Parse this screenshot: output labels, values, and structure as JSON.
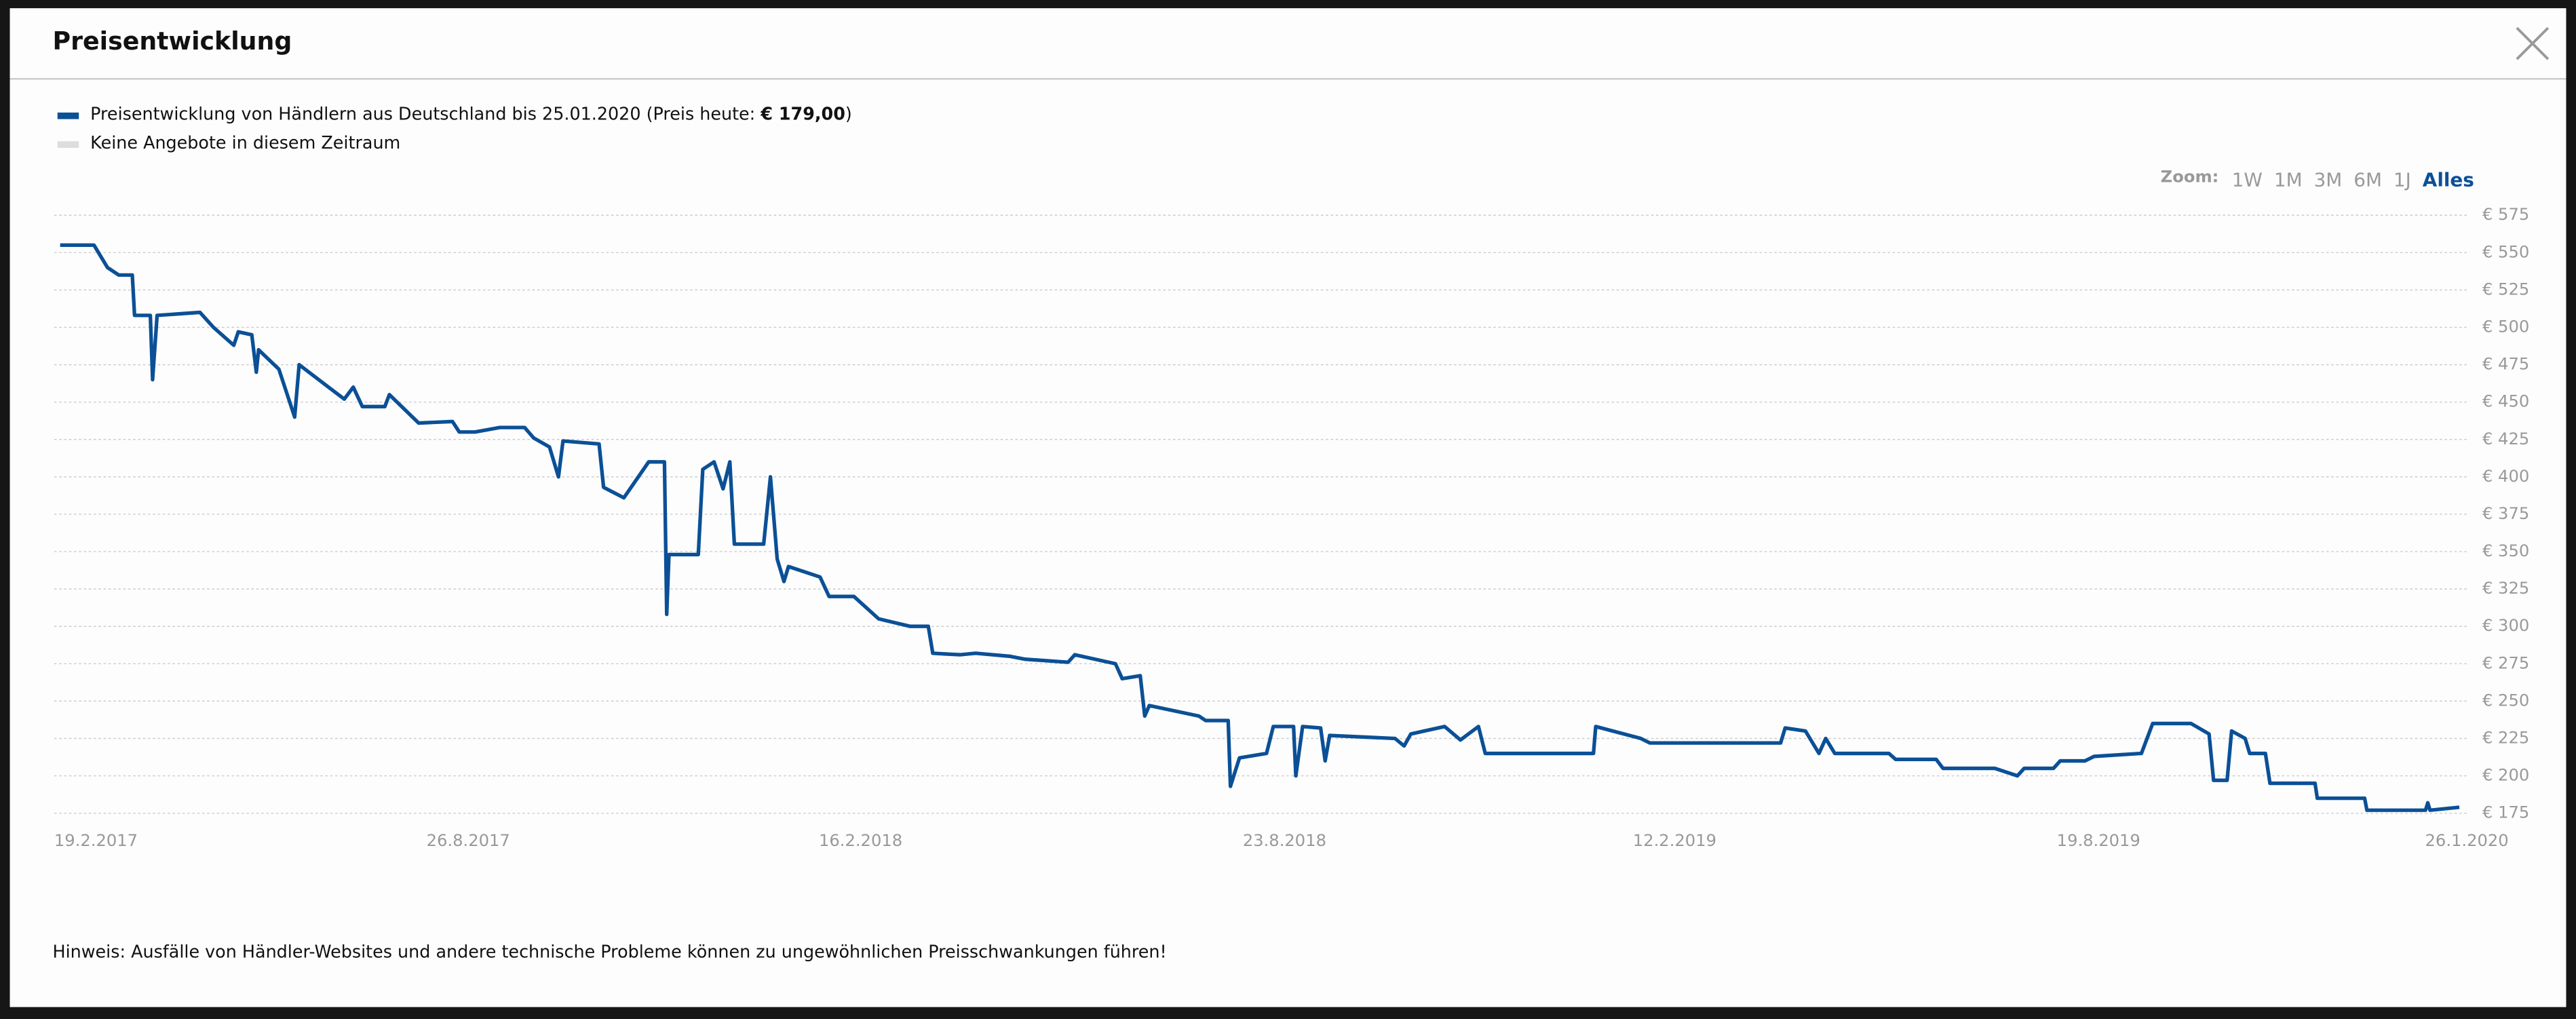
{
  "header": {
    "title": "Preisentwicklung"
  },
  "legend": {
    "items": [
      {
        "text": "Preisentwicklung von Händlern aus Deutschland bis 25.01.2020 (Preis heute: ",
        "bold": "€ 179,00",
        "text_end": ")",
        "color": "#0b5096"
      },
      {
        "text": "Keine Angebote in diesem Zeitraum",
        "color": "#dddddd"
      }
    ]
  },
  "zoom": {
    "label": "Zoom:",
    "options": [
      "1W",
      "1M",
      "3M",
      "6M",
      "1J",
      "Alles"
    ],
    "selected": "Alles"
  },
  "chart_data": {
    "type": "line",
    "x": [
      "2017-02-26",
      "2017-03-13",
      "2017-03-19",
      "2017-03-24",
      "2017-03-30",
      "2017-03-31",
      "2017-04-07",
      "2017-04-08",
      "2017-04-10",
      "2017-04-29",
      "2017-05-05",
      "2017-05-14",
      "2017-05-16",
      "2017-05-22",
      "2017-05-24",
      "2017-05-25",
      "2017-06-03",
      "2017-06-10",
      "2017-06-12",
      "2017-06-25",
      "2017-07-02",
      "2017-07-06",
      "2017-07-10",
      "2017-07-20",
      "2017-07-22",
      "2017-08-04",
      "2017-08-19",
      "2017-08-22",
      "2017-08-29",
      "2017-09-09",
      "2017-09-20",
      "2017-09-24",
      "2017-10-01",
      "2017-10-05",
      "2017-10-07",
      "2017-10-23",
      "2017-10-25",
      "2017-11-03",
      "2017-11-14",
      "2017-11-21",
      "2017-11-22",
      "2017-11-23",
      "2017-12-06",
      "2017-12-08",
      "2017-12-13",
      "2017-12-17",
      "2017-12-20",
      "2017-12-22",
      "2018-01-04",
      "2018-01-07",
      "2018-01-10",
      "2018-01-13",
      "2018-01-15",
      "2018-01-29",
      "2018-02-02",
      "2018-02-13",
      "2018-02-24",
      "2018-03-10",
      "2018-03-18",
      "2018-03-20",
      "2018-04-01",
      "2018-04-08",
      "2018-04-23",
      "2018-04-30",
      "2018-05-19",
      "2018-05-22",
      "2018-06-09",
      "2018-06-12",
      "2018-06-20",
      "2018-06-22",
      "2018-06-24",
      "2018-07-16",
      "2018-07-19",
      "2018-07-29",
      "2018-07-30",
      "2018-08-03",
      "2018-08-15",
      "2018-08-18",
      "2018-08-27",
      "2018-08-28",
      "2018-08-31",
      "2018-09-08",
      "2018-09-10",
      "2018-09-12",
      "2018-10-11",
      "2018-10-15",
      "2018-10-18",
      "2018-11-02",
      "2018-11-09",
      "2018-11-17",
      "2018-11-20",
      "2019-01-07",
      "2019-01-08",
      "2019-01-28",
      "2019-02-01",
      "2019-03-31",
      "2019-04-02",
      "2019-04-11",
      "2019-04-17",
      "2019-04-20",
      "2019-04-24",
      "2019-05-18",
      "2019-05-21",
      "2019-06-08",
      "2019-06-11",
      "2019-07-04",
      "2019-07-14",
      "2019-07-17",
      "2019-07-30",
      "2019-08-02",
      "2019-08-13",
      "2019-08-17",
      "2019-09-07",
      "2019-09-12",
      "2019-09-29",
      "2019-10-07",
      "2019-10-09",
      "2019-10-15",
      "2019-10-17",
      "2019-10-23",
      "2019-10-25",
      "2019-11-01",
      "2019-11-03",
      "2019-11-23",
      "2019-11-24",
      "2019-12-15",
      "2019-12-16",
      "2020-01-11",
      "2020-01-12",
      "2020-01-13",
      "2020-01-26"
    ],
    "series": [
      {
        "color": "#0b5096",
        "values": [
          555,
          555,
          540,
          535,
          535,
          508,
          508,
          465,
          508,
          510,
          500,
          488,
          497,
          495,
          470,
          485,
          472,
          440,
          475,
          460,
          452,
          460,
          447,
          447,
          455,
          436,
          437,
          430,
          430,
          433,
          433,
          426,
          420,
          400,
          424,
          422,
          393,
          386,
          410,
          410,
          308,
          348,
          348,
          405,
          410,
          392,
          410,
          355,
          355,
          400,
          345,
          330,
          340,
          333,
          320,
          320,
          305,
          300,
          300,
          282,
          281,
          282,
          280,
          278,
          276,
          281,
          275,
          265,
          267,
          240,
          247,
          240,
          237,
          237,
          193,
          212,
          215,
          233,
          233,
          200,
          233,
          232,
          210,
          227,
          225,
          220,
          228,
          233,
          224,
          233,
          215,
          215,
          233,
          225,
          222,
          222,
          232,
          230,
          215,
          225,
          215,
          215,
          211,
          211,
          205,
          205,
          200,
          205,
          205,
          210,
          210,
          213,
          215,
          235,
          235,
          228,
          197,
          197,
          230,
          225,
          215,
          215,
          195,
          195,
          185,
          185,
          177,
          177,
          182,
          177,
          179
        ]
      }
    ],
    "xlim": [
      "2017-02-19",
      "2020-01-26"
    ],
    "xticks": [
      {
        "value": "2017-02-19",
        "label": "19.2.2017"
      },
      {
        "value": "2017-08-26",
        "label": "26.8.2017"
      },
      {
        "value": "2018-02-16",
        "label": "16.2.2018"
      },
      {
        "value": "2018-08-23",
        "label": "23.8.2018"
      },
      {
        "value": "2019-02-12",
        "label": "12.2.2019"
      },
      {
        "value": "2019-08-19",
        "label": "19.8.2019"
      },
      {
        "value": "2020-01-26",
        "label": "26.1.2020"
      }
    ],
    "ylim": [
      175,
      575
    ],
    "yticks": [
      {
        "value": 175,
        "label": "€ 175"
      },
      {
        "value": 200,
        "label": "€ 200"
      },
      {
        "value": 225,
        "label": "€ 225"
      },
      {
        "value": 250,
        "label": "€ 250"
      },
      {
        "value": 275,
        "label": "€ 275"
      },
      {
        "value": 300,
        "label": "€ 300"
      },
      {
        "value": 325,
        "label": "€ 325"
      },
      {
        "value": 350,
        "label": "€ 350"
      },
      {
        "value": 375,
        "label": "€ 375"
      },
      {
        "value": 400,
        "label": "€ 400"
      },
      {
        "value": 425,
        "label": "€ 425"
      },
      {
        "value": 450,
        "label": "€ 450"
      },
      {
        "value": 475,
        "label": "€ 475"
      },
      {
        "value": 500,
        "label": "€ 500"
      },
      {
        "value": 525,
        "label": "€ 525"
      },
      {
        "value": 550,
        "label": "€ 550"
      },
      {
        "value": 575,
        "label": "€ 575"
      }
    ],
    "grid": true
  },
  "note": "Hinweis: Ausfälle von Händler-Websites und andere technische Probleme können zu ungewöhnlichen Preisschwankungen führen!"
}
